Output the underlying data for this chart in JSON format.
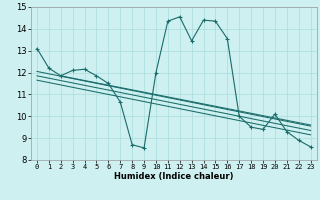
{
  "xlabel": "Humidex (Indice chaleur)",
  "background_color": "#cef0f0",
  "grid_color": "#aadddd",
  "line_color": "#1a6b6b",
  "xlim": [
    -0.5,
    23.5
  ],
  "ylim": [
    8.0,
    15.0
  ],
  "yticks": [
    8,
    9,
    10,
    11,
    12,
    13,
    14,
    15
  ],
  "xticks": [
    0,
    1,
    2,
    3,
    4,
    5,
    6,
    7,
    8,
    9,
    10,
    11,
    12,
    13,
    14,
    15,
    16,
    17,
    18,
    19,
    20,
    21,
    22,
    23
  ],
  "main_series": [
    13.1,
    12.2,
    11.85,
    12.1,
    12.15,
    11.85,
    11.5,
    10.65,
    8.7,
    8.55,
    12.0,
    14.35,
    14.55,
    13.45,
    14.4,
    14.35,
    13.55,
    10.0,
    9.5,
    9.4,
    10.1,
    9.3,
    8.9,
    8.6
  ],
  "regression_lines": [
    {
      "x0": 0,
      "y0": 12.05,
      "x1": 23,
      "y1": 9.55
    },
    {
      "x0": 0,
      "y0": 11.85,
      "x1": 23,
      "y1": 9.35
    },
    {
      "x0": 0,
      "y0": 11.65,
      "x1": 23,
      "y1": 9.15
    },
    {
      "x0": 2,
      "y0": 11.85,
      "x1": 23,
      "y1": 9.6
    }
  ],
  "title_fontsize": 7,
  "xlabel_fontsize": 6,
  "tick_fontsize": 5
}
